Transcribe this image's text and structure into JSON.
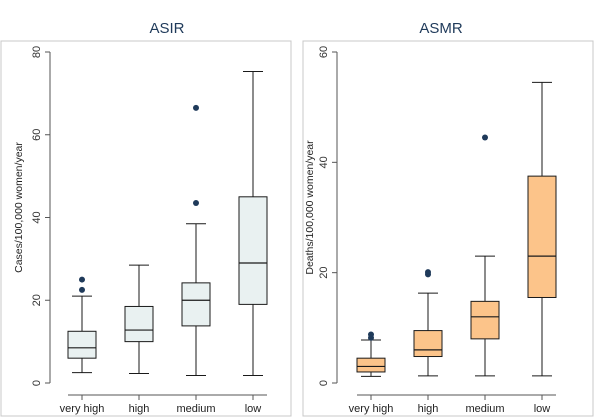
{
  "chart_data": [
    {
      "type": "box",
      "title": "ASIR",
      "ylabel": "Cases/100,000 women/year",
      "xlabel": "",
      "categories": [
        "very high",
        "high",
        "medium",
        "low"
      ],
      "ylim": [
        0,
        80
      ],
      "yticks": [
        0,
        20,
        40,
        60,
        80
      ],
      "grid": "off",
      "box_color": "#e9f1f1",
      "series": [
        {
          "category": "very high",
          "min": 2.5,
          "q1": 6,
          "median": 8.5,
          "q3": 12.5,
          "max": 21,
          "outliers": [
            22.5,
            25
          ]
        },
        {
          "category": "high",
          "min": 2.3,
          "q1": 10,
          "median": 12.8,
          "q3": 18.5,
          "max": 28.5,
          "outliers": []
        },
        {
          "category": "medium",
          "min": 1.8,
          "q1": 13.8,
          "median": 20,
          "q3": 24.2,
          "max": 38.5,
          "outliers": [
            43.5,
            66.5
          ]
        },
        {
          "category": "low",
          "min": 1.8,
          "q1": 19,
          "median": 29,
          "q3": 45,
          "max": 75.3,
          "outliers": []
        }
      ]
    },
    {
      "type": "box",
      "title": "ASMR",
      "ylabel": "Deaths/100,000 women/year",
      "xlabel": "",
      "categories": [
        "very high",
        "high",
        "medium",
        "low"
      ],
      "ylim": [
        0,
        60
      ],
      "yticks": [
        0,
        20,
        40,
        60
      ],
      "grid": "off",
      "box_color": "#fcc48a",
      "series": [
        {
          "category": "very high",
          "min": 1.2,
          "q1": 2,
          "median": 3,
          "q3": 4.5,
          "max": 7.8,
          "outliers": [
            8.2,
            8.8
          ]
        },
        {
          "category": "high",
          "min": 1.3,
          "q1": 4.8,
          "median": 6,
          "q3": 9.5,
          "max": 16.3,
          "outliers": [
            19.7,
            20.1
          ]
        },
        {
          "category": "medium",
          "min": 1.3,
          "q1": 8,
          "median": 12,
          "q3": 14.8,
          "max": 23,
          "outliers": [
            44.5
          ]
        },
        {
          "category": "low",
          "min": 1.3,
          "q1": 15.5,
          "median": 23,
          "q3": 37.5,
          "max": 54.5,
          "outliers": []
        }
      ]
    }
  ],
  "colors": {
    "outlier": "#1f3a5a",
    "title": "#1f3a5a",
    "stroke": "#1a1a1a",
    "axis": "#555555"
  }
}
